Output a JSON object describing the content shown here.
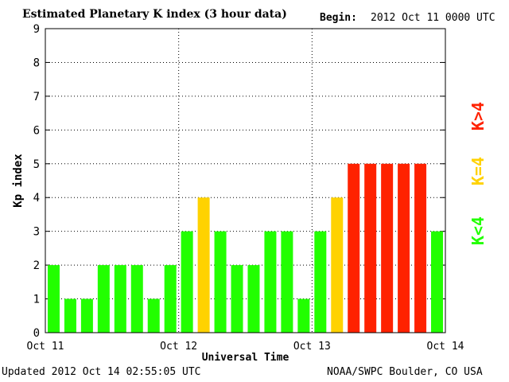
{
  "header": {
    "title": "Estimated Planetary K index (3 hour data)",
    "begin_label": "Begin:",
    "begin_value": "2012 Oct 11 0000 UTC"
  },
  "footer": {
    "updated": "Updated 2012 Oct 14 02:55:05 UTC",
    "credit": "NOAA/SWPC Boulder, CO USA"
  },
  "legend": {
    "low": "K<4",
    "equal": "K=4",
    "high": "K>4"
  },
  "colors": {
    "low": "#22ff00",
    "equal": "#ffd200",
    "high": "#ff2200"
  },
  "chart_data": {
    "type": "bar",
    "title": "Estimated Planetary K index (3 hour data)",
    "xlabel": "Universal Time",
    "ylabel": "Kp index",
    "ylim": [
      0,
      9
    ],
    "yticks": [
      "0",
      "1",
      "2",
      "3",
      "4",
      "5",
      "6",
      "7",
      "8",
      "9"
    ],
    "xticks": [
      "Oct 11",
      "Oct 12",
      "Oct 13",
      "Oct 14"
    ],
    "grid": true,
    "interval_hours": 3,
    "values": [
      2,
      1,
      1,
      2,
      2,
      2,
      1,
      2,
      3,
      4,
      3,
      2,
      2,
      3,
      3,
      1,
      3,
      4,
      5,
      5,
      5,
      5,
      5,
      3
    ]
  }
}
